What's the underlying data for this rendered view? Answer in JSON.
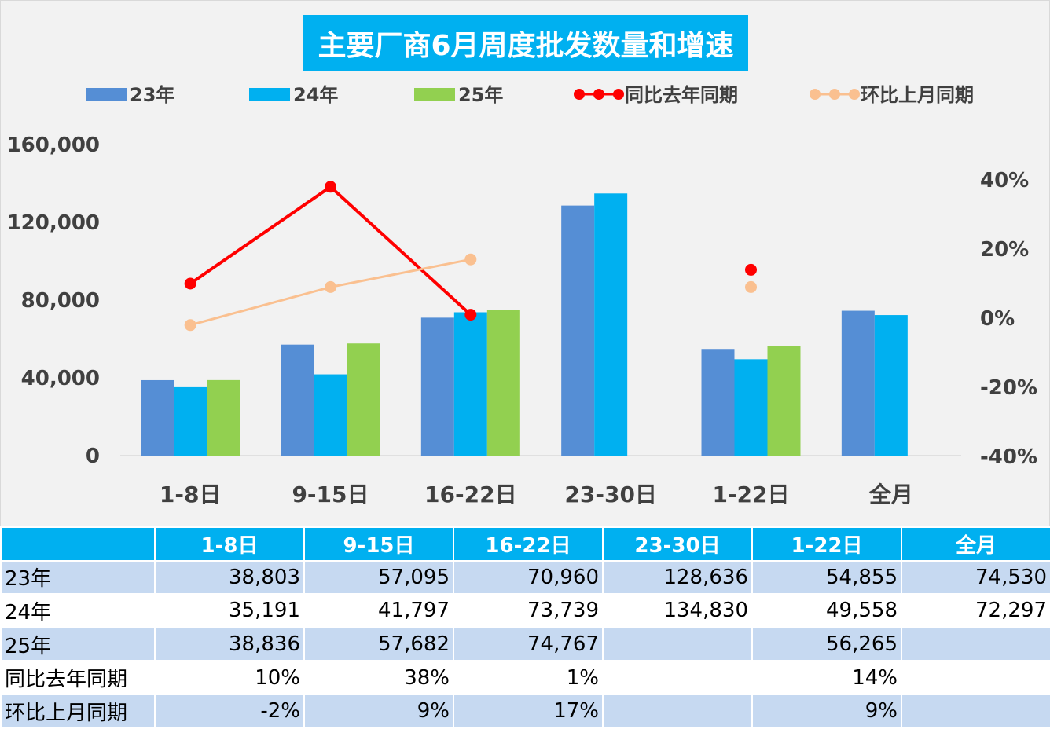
{
  "title": "主要厂商6月周度批发数量和增速",
  "colors": {
    "s23": "#558ed5",
    "s24": "#00b0f0",
    "s25": "#92d050",
    "yoy": "#ff0000",
    "mom": "#fac090",
    "title_bg": "#00b0f0",
    "table_header": "#00b0f0",
    "table_band": "#c6d9f1"
  },
  "chart_data": {
    "type": "bar",
    "title": "主要厂商6月周度批发数量和增速",
    "categories": [
      "1-8日",
      "9-15日",
      "16-22日",
      "23-30日",
      "1-22日",
      "全月"
    ],
    "series": [
      {
        "name": "23年",
        "type": "bar",
        "axis": "left",
        "color": "#558ed5",
        "values": [
          38803,
          57095,
          70960,
          128636,
          54855,
          74530
        ]
      },
      {
        "name": "24年",
        "type": "bar",
        "axis": "left",
        "color": "#00b0f0",
        "values": [
          35191,
          41797,
          73739,
          134830,
          49558,
          72297
        ]
      },
      {
        "name": "25年",
        "type": "bar",
        "axis": "left",
        "color": "#92d050",
        "values": [
          38836,
          57682,
          74767,
          null,
          56265,
          null
        ]
      },
      {
        "name": "同比去年同期",
        "type": "line",
        "axis": "right",
        "color": "#ff0000",
        "values": [
          0.1,
          0.38,
          0.01,
          null,
          0.14,
          null
        ]
      },
      {
        "name": "环比上月同期",
        "type": "line",
        "axis": "right",
        "color": "#fac090",
        "values": [
          -0.02,
          0.09,
          0.17,
          null,
          0.09,
          null
        ]
      }
    ],
    "y_left": {
      "min": 0,
      "max": 160000,
      "ticks": [
        "0",
        "40,000",
        "80,000",
        "120,000",
        "160,000"
      ]
    },
    "y_right": {
      "min": -0.4,
      "max": 0.4,
      "ticks": [
        "-40%",
        "-20%",
        "0%",
        "20%",
        "40%"
      ]
    },
    "grid": false,
    "legend_position": "top"
  },
  "table": {
    "header": [
      "",
      "1-8日",
      "9-15日",
      "16-22日",
      "23-30日",
      "1-22日",
      "全月"
    ],
    "rows": [
      {
        "label": "23年",
        "cells": [
          "38,803",
          "57,095",
          "70,960",
          "128,636",
          "54,855",
          "74,530"
        ]
      },
      {
        "label": "24年",
        "cells": [
          "35,191",
          "41,797",
          "73,739",
          "134,830",
          "49,558",
          "72,297"
        ]
      },
      {
        "label": "25年",
        "cells": [
          "38,836",
          "57,682",
          "74,767",
          "",
          "56,265",
          ""
        ]
      },
      {
        "label": "同比去年同期",
        "cells": [
          "10%",
          "38%",
          "1%",
          "",
          "14%",
          ""
        ]
      },
      {
        "label": "环比上月同期",
        "cells": [
          "-2%",
          "9%",
          "17%",
          "",
          "9%",
          ""
        ]
      }
    ]
  }
}
